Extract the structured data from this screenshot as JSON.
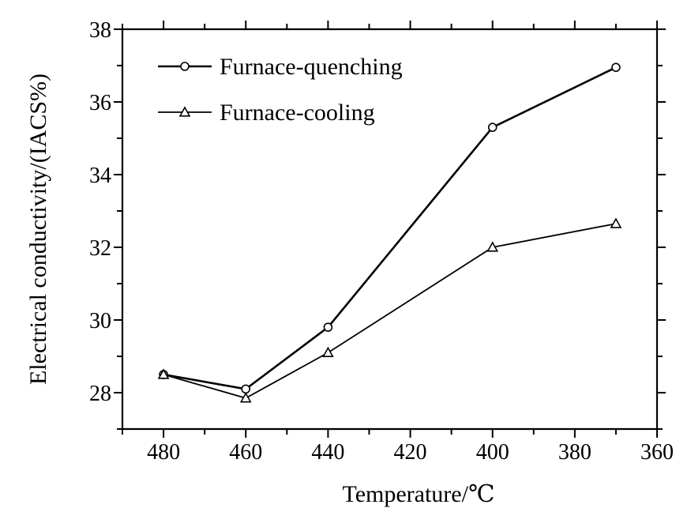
{
  "chart_data": {
    "type": "line",
    "xlabel": "Temperature/℃",
    "ylabel": "Electrical conductivity/(IACS%)",
    "xlim": [
      490,
      360
    ],
    "ylim": [
      27,
      38
    ],
    "x_reversed": true,
    "xticks": [
      480,
      460,
      440,
      420,
      400,
      380,
      360
    ],
    "yticks": [
      28,
      30,
      32,
      34,
      36,
      38
    ],
    "grid": false,
    "legend_position": "top-left",
    "series": [
      {
        "name": "Furnace-quenching",
        "marker": "circle",
        "x": [
          480,
          460,
          440,
          400,
          370
        ],
        "y": [
          28.5,
          28.1,
          29.8,
          35.3,
          36.95
        ]
      },
      {
        "name": "Furnace-cooling",
        "marker": "triangle",
        "x": [
          480,
          460,
          440,
          400,
          370
        ],
        "y": [
          28.5,
          27.85,
          29.1,
          32.0,
          32.65
        ]
      }
    ]
  }
}
